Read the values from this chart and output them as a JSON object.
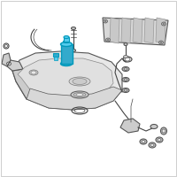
{
  "background_color": "#f0f0f0",
  "border_color": "#bbbbbb",
  "highlight_color": "#0099bb",
  "highlight_fill": "#33aacc",
  "highlight_fill2": "#55ccee",
  "line_color": "#444444",
  "part_light": "#cccccc",
  "part_mid": "#aaaaaa",
  "tank_fill": "#e8e8e8",
  "tank_stroke": "#555555",
  "figsize": [
    2.0,
    2.0
  ],
  "dpi": 100
}
